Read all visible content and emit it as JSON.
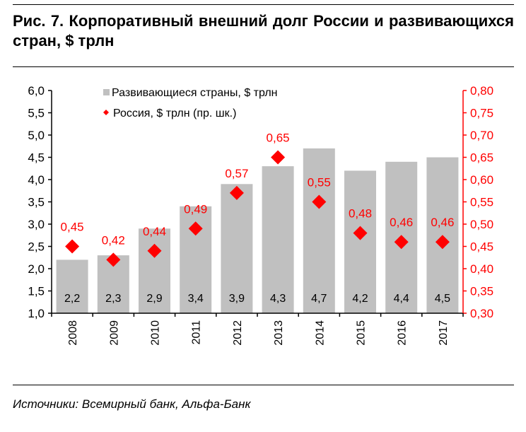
{
  "title": "Рис. 7.  Корпоративный внешний долг России и развивающихся стран, $ трлн",
  "source": "Источники: Всемирный банк, Альфа-Банк",
  "chart_data": {
    "type": "bar+scatter",
    "title": "Рис. 7.  Корпоративный внешний долг России и развивающихся стран, $ трлн",
    "categories": [
      "2008",
      "2009",
      "2010",
      "2011",
      "2012",
      "2013",
      "2014",
      "2015",
      "2016",
      "2017"
    ],
    "series": [
      {
        "name": "Развивающиеся страны, $ трлн",
        "type": "bar",
        "axis": "left",
        "color": "#c0c0c0",
        "values": [
          2.2,
          2.3,
          2.9,
          3.4,
          3.9,
          4.3,
          4.7,
          4.2,
          4.4,
          4.5
        ],
        "labels": [
          "2,2",
          "2,3",
          "2,9",
          "3,4",
          "3,9",
          "4,3",
          "4,7",
          "4,2",
          "4,4",
          "4,5"
        ]
      },
      {
        "name": "Россия, $ трлн (пр. шк.)",
        "type": "scatter",
        "axis": "right",
        "marker": "diamond",
        "color": "#ff0000",
        "values": [
          0.45,
          0.42,
          0.44,
          0.49,
          0.57,
          0.65,
          0.55,
          0.48,
          0.46,
          0.46
        ],
        "labels": [
          "0,45",
          "0,42",
          "0,44",
          "0,49",
          "0,57",
          "0,65",
          "0,55",
          "0,48",
          "0,46",
          "0,46"
        ]
      }
    ],
    "y_left": {
      "range": [
        1.0,
        6.0
      ],
      "ticks": [
        "1,0",
        "1,5",
        "2,0",
        "2,5",
        "3,0",
        "3,5",
        "4,0",
        "4,5",
        "5,0",
        "5,5",
        "6,0"
      ],
      "color": "#000000"
    },
    "y_right": {
      "range": [
        0.3,
        0.8
      ],
      "ticks": [
        "0,30",
        "0,35",
        "0,40",
        "0,45",
        "0,50",
        "0,55",
        "0,60",
        "0,65",
        "0,70",
        "0,75",
        "0,80"
      ],
      "color": "#ff0000"
    },
    "grid": false,
    "legend": "top-left"
  }
}
